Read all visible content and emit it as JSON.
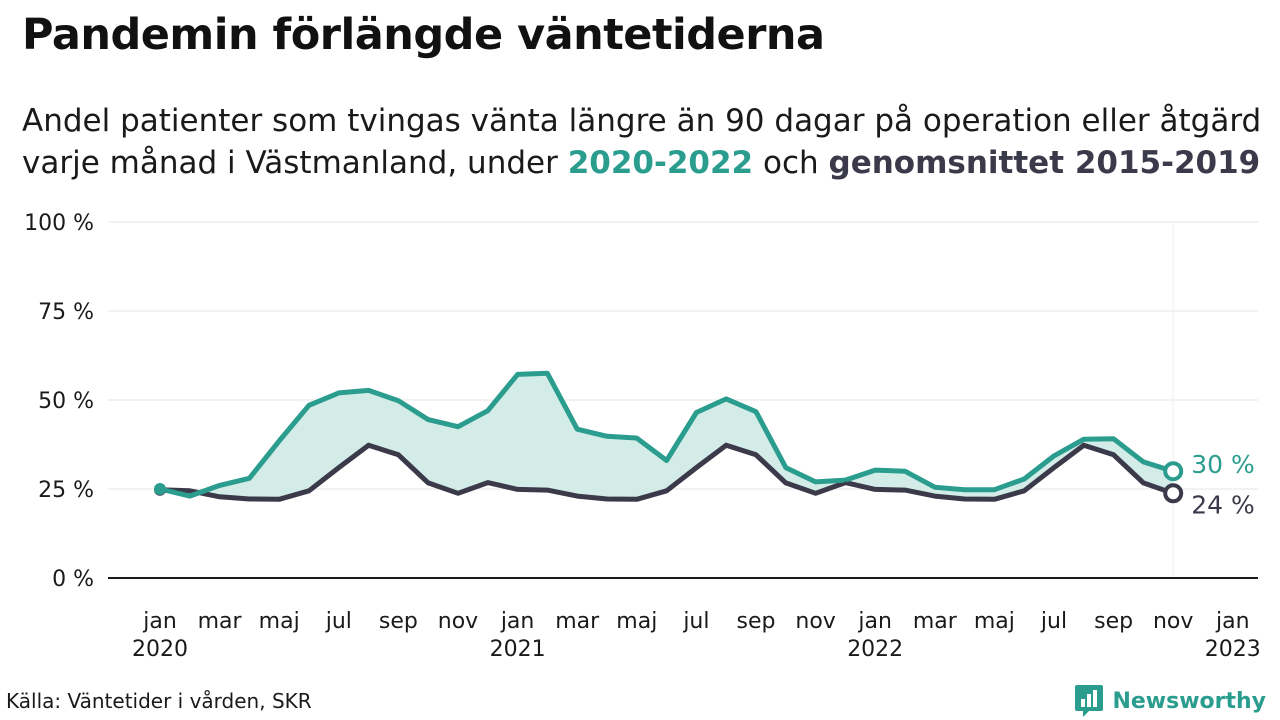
{
  "header": {
    "title": "Pandemin förlängde väntetiderna",
    "subtitle_line1": "Andel patienter som tvingas vänta längre än 90 dagar på operation eller åtgärd",
    "subtitle_line2_pre": "varje månad i Västmanland, under ",
    "subtitle_hl1": "2020-2022",
    "subtitle_mid": " och ",
    "subtitle_hl2": "genomsnittet 2015-2019"
  },
  "footer": {
    "source": "Källa: Väntetider i vården, SKR",
    "brand": "Newsworthy",
    "brand_icon": "bar-chart-icon"
  },
  "colors": {
    "series_2020_2022": "#2a9d8f",
    "series_average": "#3a3a4a",
    "area_fill": "#d3ece8",
    "grid": "#e6e6e6"
  },
  "chart_data": {
    "type": "line",
    "title": "",
    "xlabel": "",
    "ylabel": "",
    "ylim": [
      0,
      100
    ],
    "yticks": [
      0,
      25,
      50,
      75,
      100
    ],
    "ytick_labels": [
      "0 %",
      "25 %",
      "50 %",
      "75 %",
      "100 %"
    ],
    "grid": true,
    "x": [
      "2020-01",
      "2020-02",
      "2020-03",
      "2020-04",
      "2020-05",
      "2020-06",
      "2020-07",
      "2020-08",
      "2020-09",
      "2020-10",
      "2020-11",
      "2020-12",
      "2021-01",
      "2021-02",
      "2021-03",
      "2021-04",
      "2021-05",
      "2021-06",
      "2021-07",
      "2021-08",
      "2021-09",
      "2021-10",
      "2021-11",
      "2021-12",
      "2022-01",
      "2022-02",
      "2022-03",
      "2022-04",
      "2022-05",
      "2022-06",
      "2022-07",
      "2022-08",
      "2022-09",
      "2022-10",
      "2022-11"
    ],
    "xticks": [
      {
        "month": "jan",
        "year": "2020",
        "x": "2020-01"
      },
      {
        "month": "mar",
        "year": "",
        "x": "2020-03"
      },
      {
        "month": "maj",
        "year": "",
        "x": "2020-05"
      },
      {
        "month": "jul",
        "year": "",
        "x": "2020-07"
      },
      {
        "month": "sep",
        "year": "",
        "x": "2020-09"
      },
      {
        "month": "nov",
        "year": "",
        "x": "2020-11"
      },
      {
        "month": "jan",
        "year": "2021",
        "x": "2021-01"
      },
      {
        "month": "mar",
        "year": "",
        "x": "2021-03"
      },
      {
        "month": "maj",
        "year": "",
        "x": "2021-05"
      },
      {
        "month": "jul",
        "year": "",
        "x": "2021-07"
      },
      {
        "month": "sep",
        "year": "",
        "x": "2021-09"
      },
      {
        "month": "nov",
        "year": "",
        "x": "2021-11"
      },
      {
        "month": "jan",
        "year": "2022",
        "x": "2022-01"
      },
      {
        "month": "mar",
        "year": "",
        "x": "2022-03"
      },
      {
        "month": "maj",
        "year": "",
        "x": "2022-05"
      },
      {
        "month": "jul",
        "year": "",
        "x": "2022-07"
      },
      {
        "month": "sep",
        "year": "",
        "x": "2022-09"
      },
      {
        "month": "nov",
        "year": "",
        "x": "2022-11"
      },
      {
        "month": "jan",
        "year": "2023",
        "x": "2023-01"
      }
    ],
    "series": [
      {
        "values": [
          25,
          23,
          26,
          28,
          38.5,
          48.5,
          52,
          52.7,
          49.8,
          44.5,
          42.5,
          47,
          57.2,
          57.5,
          41.8,
          39.8,
          39.3,
          33,
          46.5,
          50.3,
          46.7,
          31,
          27,
          27.5,
          30.3,
          30,
          25.5,
          24.8,
          24.8,
          27.8,
          34.3,
          39,
          39.1,
          32.6,
          30
        ],
        "end_label": "30 %"
      },
      {
        "values": [
          24.8,
          24.5,
          22.8,
          22.2,
          22.1,
          24.5,
          31,
          37.3,
          34.6,
          26.7,
          23.8,
          26.8,
          24.9,
          24.7,
          23,
          22.2,
          22.1,
          24.5,
          31,
          37.3,
          34.6,
          26.7,
          23.8,
          26.8,
          24.9,
          24.7,
          23,
          22.2,
          22.1,
          24.5,
          31,
          37.3,
          34.6,
          26.7,
          23.8
        ],
        "end_label": "24 %"
      }
    ]
  }
}
